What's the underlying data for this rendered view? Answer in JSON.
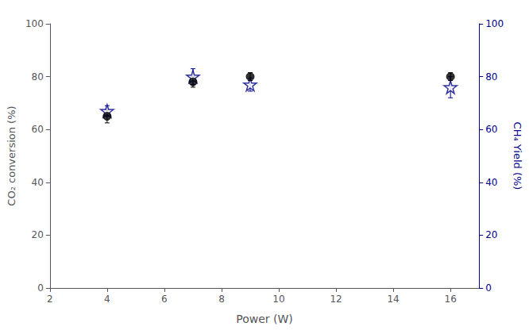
{
  "chart_data": {
    "type": "scatter",
    "xlabel": "Power (W)",
    "ylabel": "CO₂ conversion (%)",
    "y2label": "CH₄ Yield (%)",
    "x": [
      4,
      7,
      9,
      16
    ],
    "series": [
      {
        "color": "#000000",
        "marker": "circle",
        "values": [
          65,
          78,
          80,
          80
        ],
        "errors": [
          2.5,
          2.0,
          1.5,
          1.5
        ]
      },
      {
        "color": "#00008B",
        "marker": "star",
        "axis": "y2",
        "values": [
          67,
          80,
          77,
          76
        ],
        "errors": [
          2.0,
          3.0,
          2.5,
          4.0
        ]
      }
    ],
    "xlim": [
      2,
      17
    ],
    "xticks": [
      2,
      4,
      6,
      8,
      10,
      12,
      14,
      16
    ],
    "ylim": [
      0,
      100
    ],
    "yticks": [
      0,
      20,
      40,
      60,
      80,
      100
    ],
    "y2lim": [
      0,
      100
    ],
    "y2ticks": [
      0,
      20,
      40,
      60,
      80,
      100
    ],
    "grid": false
  }
}
